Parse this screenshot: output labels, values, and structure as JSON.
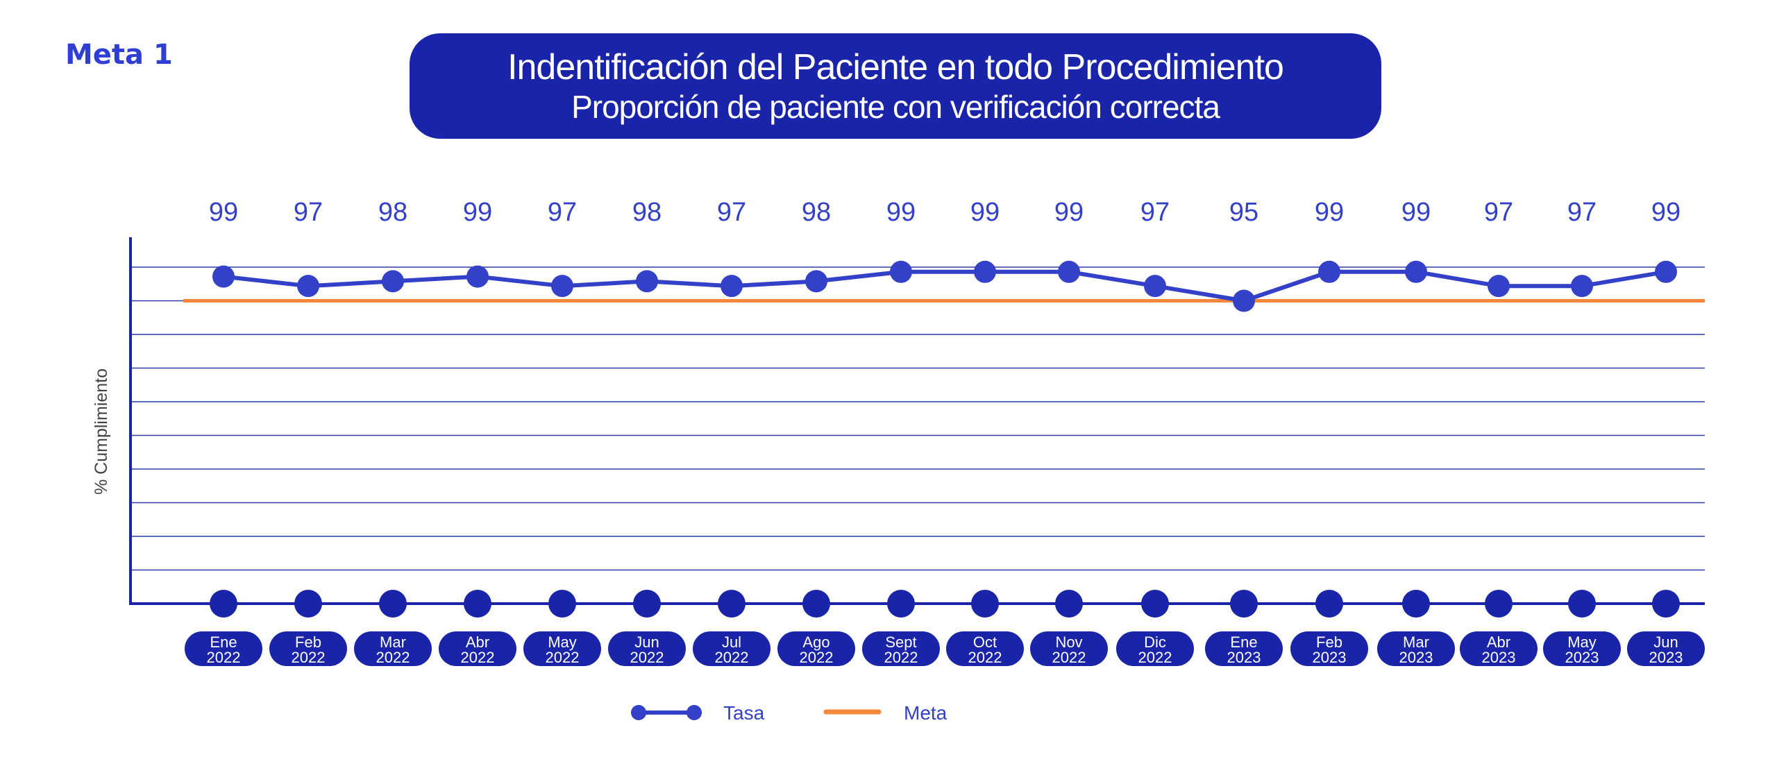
{
  "header": {
    "meta_label": "Meta 1",
    "title_line1": "Indentificación del Paciente en todo Procedimiento",
    "title_line2": "Proporción de paciente con verificación correcta"
  },
  "colors": {
    "series": "#3340c8",
    "target": "#f7873a",
    "axis": "#1a24a8",
    "grid": "#2f3aa8",
    "pill": "#1a24a8",
    "label": "#3340c8"
  },
  "chart_data": {
    "type": "line",
    "title": "Indentificación del Paciente en todo Procedimiento — Proporción de paciente con verificación correcta",
    "ylabel": "% Cumplimiento",
    "xlabel": "",
    "categories": [
      {
        "month": "Ene",
        "year": "2022"
      },
      {
        "month": "Feb",
        "year": "2022"
      },
      {
        "month": "Mar",
        "year": "2022"
      },
      {
        "month": "Abr",
        "year": "2022"
      },
      {
        "month": "May",
        "year": "2022"
      },
      {
        "month": "Jun",
        "year": "2022"
      },
      {
        "month": "Jul",
        "year": "2022"
      },
      {
        "month": "Ago",
        "year": "2022"
      },
      {
        "month": "Sept",
        "year": "2022"
      },
      {
        "month": "Oct",
        "year": "2022"
      },
      {
        "month": "Nov",
        "year": "2022"
      },
      {
        "month": "Dic",
        "year": "2022"
      },
      {
        "month": "Ene",
        "year": "2023"
      },
      {
        "month": "Feb",
        "year": "2023"
      },
      {
        "month": "Mar",
        "year": "2023"
      },
      {
        "month": "Abr",
        "year": "2023"
      },
      {
        "month": "May",
        "year": "2023"
      },
      {
        "month": "Jun",
        "year": "2023"
      }
    ],
    "series": [
      {
        "name": "Tasa",
        "values": [
          99,
          97,
          98,
          99,
          97,
          98,
          97,
          98,
          99,
          99,
          99,
          97,
          95,
          99,
          99,
          97,
          97,
          99
        ]
      }
    ],
    "plotted_values": [
      98.6,
      97.2,
      97.9,
      98.6,
      97.2,
      97.9,
      97.2,
      97.9,
      99.3,
      99.3,
      99.3,
      97.2,
      95.0,
      99.3,
      99.3,
      97.2,
      97.2,
      99.3
    ],
    "target": {
      "name": "Meta",
      "value": 95
    },
    "ylim": [
      50,
      100
    ],
    "grid": true,
    "legend": [
      "Tasa",
      "Meta"
    ],
    "legend_position": "bottom-center"
  }
}
